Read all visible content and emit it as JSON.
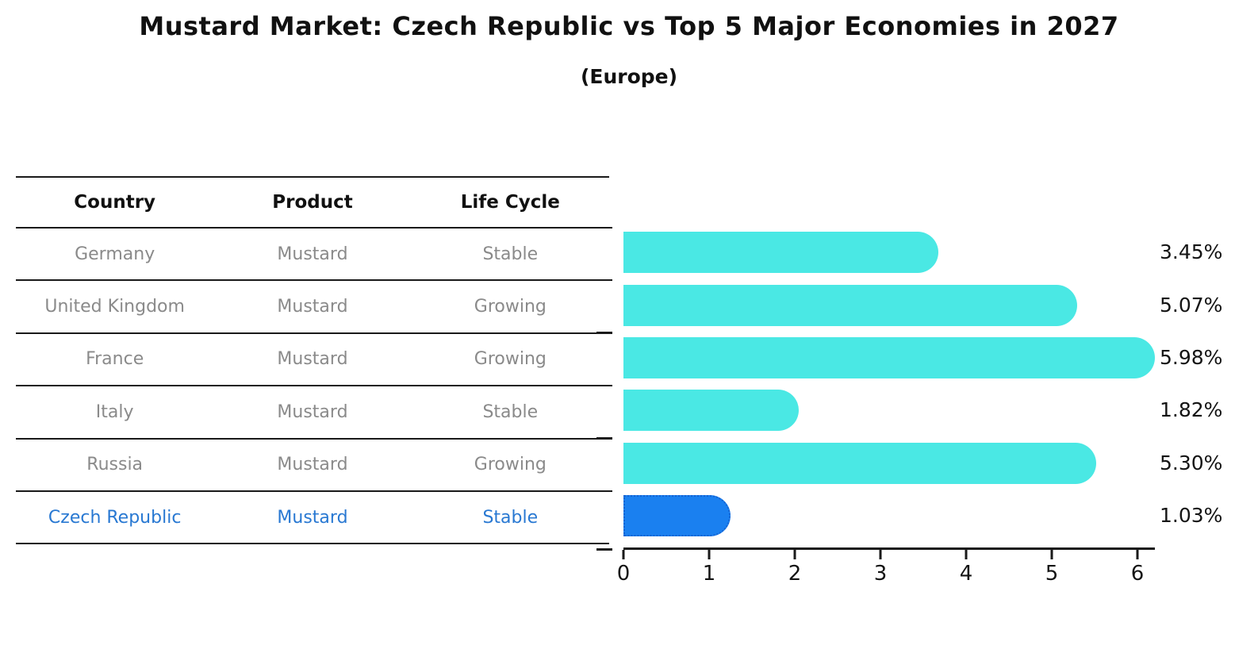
{
  "title": "Mustard Market: Czech Republic vs Top 5 Major Economies in 2027",
  "subtitle": "(Europe)",
  "table": {
    "columns": [
      "Country",
      "Product",
      "Life Cycle"
    ],
    "rows": [
      {
        "country": "Germany",
        "product": "Mustard",
        "life_cycle": "Stable",
        "highlight": false
      },
      {
        "country": "United Kingdom",
        "product": "Mustard",
        "life_cycle": "Growing",
        "highlight": false
      },
      {
        "country": "France",
        "product": "Mustard",
        "life_cycle": "Growing",
        "highlight": false
      },
      {
        "country": "Italy",
        "product": "Mustard",
        "life_cycle": "Stable",
        "highlight": false
      },
      {
        "country": "Russia",
        "product": "Mustard",
        "life_cycle": "Growing",
        "highlight": false
      },
      {
        "country": "Czech Republic",
        "product": "Mustard",
        "life_cycle": "Stable",
        "highlight": true
      }
    ]
  },
  "chart_data": {
    "type": "bar",
    "orientation": "horizontal",
    "categories": [
      "Germany",
      "United Kingdom",
      "France",
      "Italy",
      "Russia",
      "Czech Republic"
    ],
    "values": [
      3.45,
      5.07,
      5.98,
      1.82,
      5.3,
      1.03
    ],
    "value_labels": [
      "3.45%",
      "5.07%",
      "5.98%",
      "1.82%",
      "5.30%",
      "1.03%"
    ],
    "x_ticks": [
      "0",
      "1",
      "2",
      "3",
      "4",
      "5",
      "6"
    ],
    "xlim": [
      0,
      6.2
    ],
    "grid": false,
    "legend": false,
    "highlight_index": 5,
    "bar_color": "#4ae8e4",
    "highlight_bar_color": "#1a80f0",
    "highlight_text_color": "#2878d2",
    "axis_color": "#1a1a1a"
  }
}
